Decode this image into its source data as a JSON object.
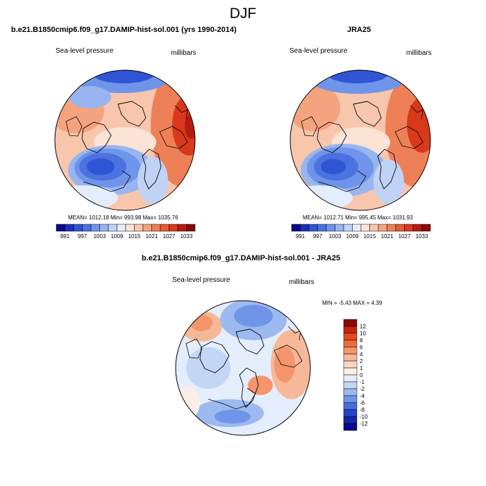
{
  "figure": {
    "title": "DJF",
    "variable_label": "Sea-level pressure",
    "units_label": "millibars"
  },
  "panels": [
    {
      "id": "model",
      "title": "b.e21.B1850cmip6.f09_g17.DAMIP-hist-sol.001 (yrs 1990-2014)",
      "stats": "MEAN= 1012.18  Min= 993.98  Max= 1035.76"
    },
    {
      "id": "obs",
      "title": "JRA25",
      "stats": "MEAN= 1012.71  Min= 995.45  Max= 1031.93"
    },
    {
      "id": "diff",
      "title": "b.e21.B1850cmip6.f09_g17.DAMIP-hist-sol.001 - JRA25",
      "stats": "MIN =  -5.43 MAX =   4.39"
    }
  ],
  "colorbar_slp": {
    "labels": [
      "991",
      "997",
      "1003",
      "1009",
      "1015",
      "1021",
      "1027",
      "1033"
    ],
    "colors": [
      "#08088c",
      "#1a2fb8",
      "#2f55d4",
      "#4a72e0",
      "#6f95ea",
      "#98b5f0",
      "#c0d3f6",
      "#e4edfb",
      "#fbe3d6",
      "#f8c6ac",
      "#f4a37f",
      "#ee8058",
      "#e65b35",
      "#d8381c",
      "#b81c0e",
      "#8a0a05"
    ]
  },
  "colorbar_diff": {
    "labels": [
      "12",
      "10",
      "8",
      "6",
      "4",
      "2",
      "1",
      "0",
      "-1",
      "-2",
      "-4",
      "-6",
      "-8",
      "-10",
      "-12"
    ],
    "colors": [
      "#8a0a05",
      "#c8230e",
      "#e24a21",
      "#f06a3e",
      "#f4956c",
      "#f7b899",
      "#fad6c4",
      "#fbeee6",
      "#e4edfb",
      "#c4d6f6",
      "#9cb9f0",
      "#7095e8",
      "#456fdf",
      "#2346c8",
      "#1228a8",
      "#08088c"
    ]
  },
  "colors": {
    "low_center": "#2347d2",
    "high_center": "#d8381c",
    "background": "#ffffff",
    "coastline": "#000000"
  }
}
